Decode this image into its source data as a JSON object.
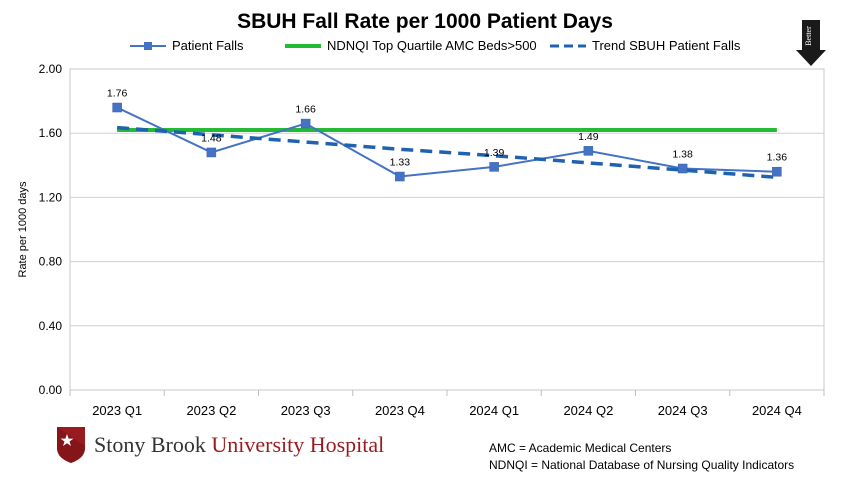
{
  "chart_data": {
    "type": "line",
    "title": "SBUH Fall Rate per 1000 Patient Days",
    "xlabel": "",
    "ylabel": "Rate per 1000 days",
    "categories": [
      "2023 Q1",
      "2023 Q2",
      "2023 Q3",
      "2023 Q4",
      "2024 Q1",
      "2024 Q2",
      "2024 Q3",
      "2024 Q4"
    ],
    "ylim": [
      0,
      2.0
    ],
    "yticks": [
      "0.00",
      "0.40",
      "0.80",
      "1.20",
      "1.60",
      "2.00"
    ],
    "grid": true,
    "legend_position": "top",
    "series": [
      {
        "name": "Patient Falls",
        "values": [
          1.76,
          1.48,
          1.66,
          1.33,
          1.39,
          1.49,
          1.38,
          1.36
        ],
        "labels": [
          "1.76",
          "1.48",
          "1.66",
          "1.33",
          "1.39",
          "1.49",
          "1.38",
          "1.36"
        ],
        "color": "#4472c4",
        "style": "line-square-markers"
      },
      {
        "name": "NDNQI Top Quartile AMC Beds>500",
        "values": [
          1.62,
          1.62,
          1.62,
          1.62,
          1.62,
          1.62,
          1.62,
          1.62
        ],
        "color": "#22bb33",
        "style": "solid-thick"
      },
      {
        "name": "Trend SBUH Patient Falls",
        "values": [
          1.635,
          1.59,
          1.545,
          1.5,
          1.46,
          1.415,
          1.37,
          1.325
        ],
        "color": "#1f62b0",
        "style": "dashed"
      }
    ]
  },
  "better_indicator": {
    "label": "Better",
    "direction": "down"
  },
  "logo": {
    "text_part1": "Stony Brook",
    "text_part2": "University Hospital"
  },
  "notes": [
    "AMC = Academic Medical Centers",
    "NDNQI = National Database of Nursing Quality Indicators"
  ]
}
